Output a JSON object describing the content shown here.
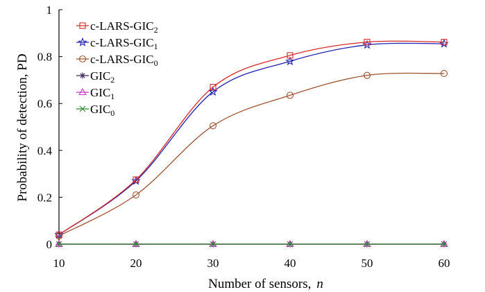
{
  "chart_data": {
    "type": "line",
    "xlabel": "Number of sensors,",
    "xlabel_var": "n",
    "ylabel": "Probability of detection, PD",
    "x": [
      10,
      20,
      30,
      40,
      50,
      60
    ],
    "xlim": [
      10,
      60
    ],
    "ylim": [
      0,
      1
    ],
    "xticks": [
      "10",
      "20",
      "30",
      "40",
      "50",
      "60"
    ],
    "yticks": [
      "0",
      "0.2",
      "0.4",
      "0.6",
      "0.8",
      "1"
    ],
    "legend_position": "top-left",
    "grid": false,
    "series": [
      {
        "name": "c-LARS-GIC",
        "sub": "2",
        "color": "#d62728",
        "marker": "square",
        "values": [
          0.04,
          0.275,
          0.67,
          0.805,
          0.862,
          0.862
        ]
      },
      {
        "name": "c-LARS-GIC",
        "sub": "1",
        "color": "#1f1fb0",
        "marker": "star",
        "values": [
          0.04,
          0.27,
          0.65,
          0.78,
          0.85,
          0.855
        ]
      },
      {
        "name": "c-LARS-GIC",
        "sub": "0",
        "color": "#a0522d",
        "marker": "circle",
        "values": [
          0.035,
          0.21,
          0.505,
          0.635,
          0.72,
          0.728
        ]
      },
      {
        "name": "GIC",
        "sub": "2",
        "color": "#3b2a5a",
        "marker": "asterisk",
        "values": [
          0,
          0,
          0,
          0,
          0,
          0
        ]
      },
      {
        "name": "GIC",
        "sub": "1",
        "color": "#cc33cc",
        "marker": "triangle",
        "values": [
          0,
          0,
          0,
          0,
          0,
          0
        ]
      },
      {
        "name": "GIC",
        "sub": "0",
        "color": "#2e8b2e",
        "marker": "x",
        "values": [
          0,
          0,
          0,
          0,
          0,
          0
        ]
      }
    ]
  }
}
